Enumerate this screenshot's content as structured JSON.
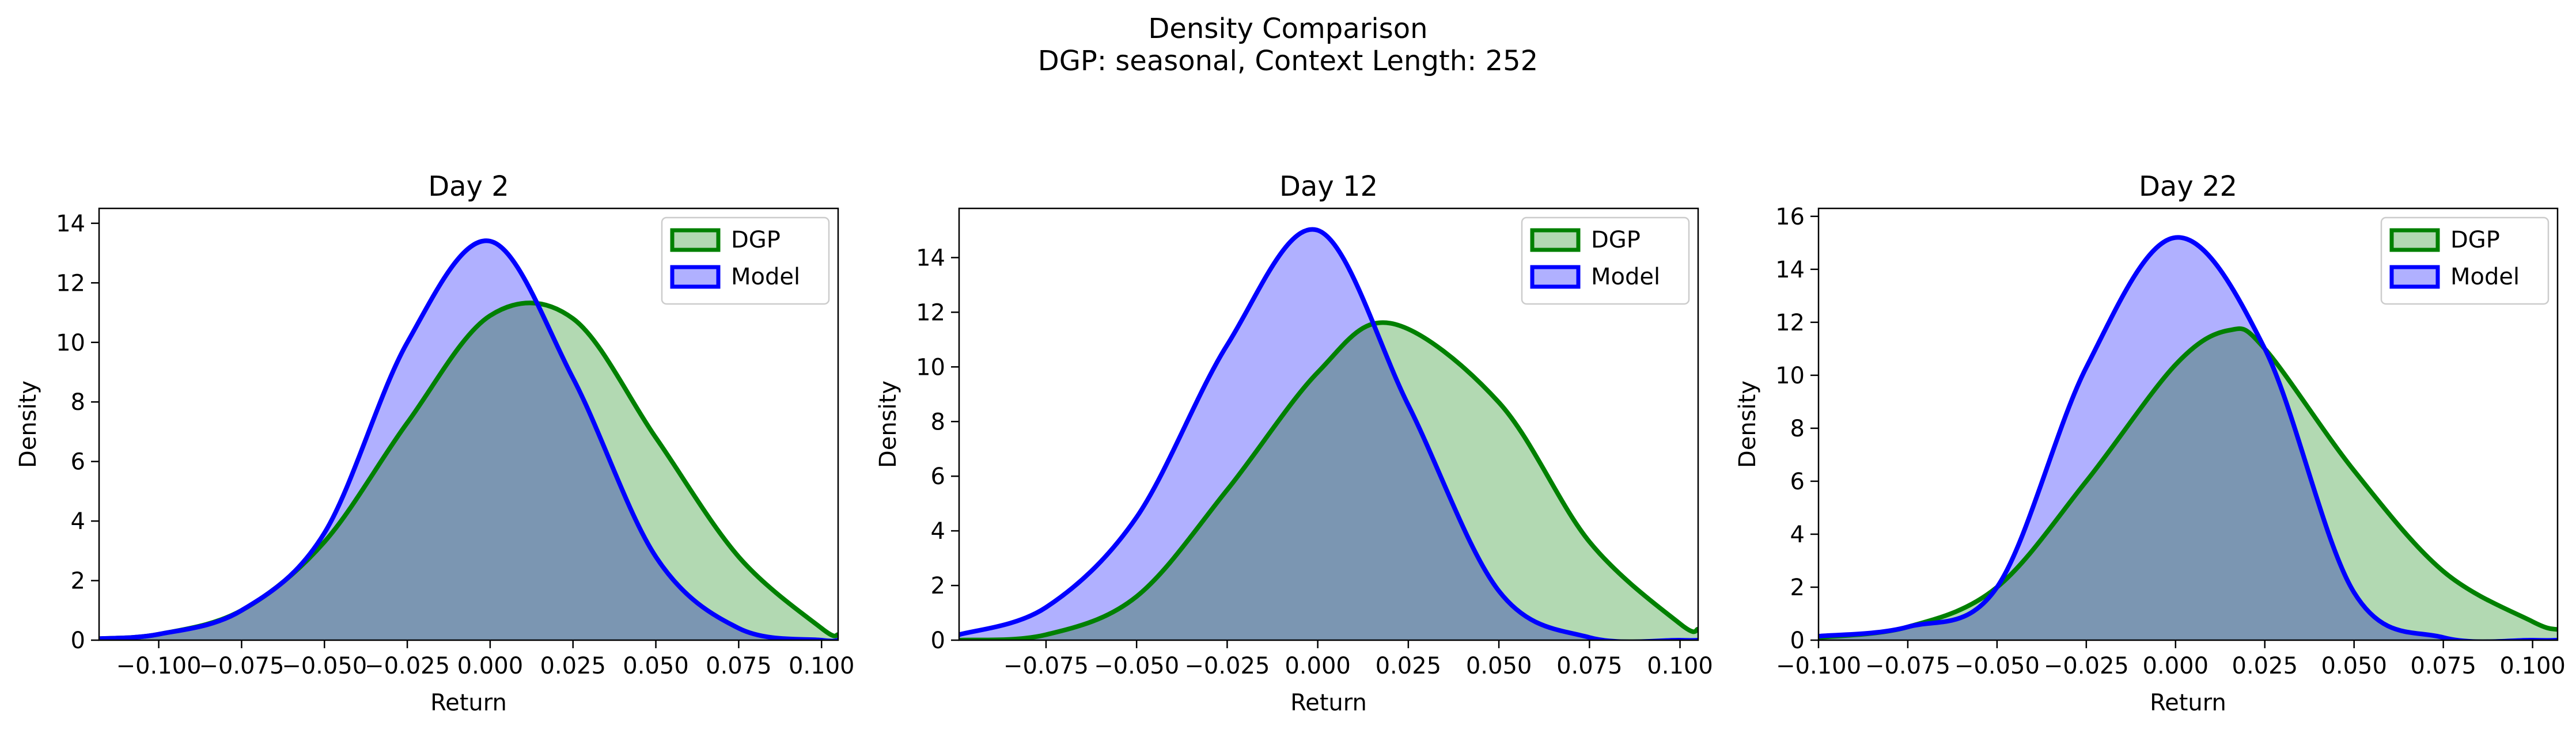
{
  "figure": {
    "title_line1": "Density Comparison",
    "title_line2": "DGP: seasonal, Context Length: 252"
  },
  "colors": {
    "dgp_fill": "#b2d9b2",
    "dgp_line": "#008000",
    "model_fill": "#b0b0ff",
    "model_line": "#0000ff",
    "overlap_fill": "#7c97c8"
  },
  "chart_data": [
    {
      "type": "area",
      "title": "Day 2",
      "xlabel": "Return",
      "ylabel": "Density",
      "xlim": [
        -0.118,
        0.105
      ],
      "ylim": [
        0,
        14.5
      ],
      "xticks": [
        -0.1,
        -0.075,
        -0.05,
        -0.025,
        0.0,
        0.025,
        0.05,
        0.075,
        0.1
      ],
      "xtick_labels": [
        "−0.100",
        "−0.075",
        "−0.050",
        "−0.025",
        "0.000",
        "0.025",
        "0.050",
        "0.075",
        "0.100"
      ],
      "yticks": [
        0,
        2,
        4,
        6,
        8,
        10,
        12,
        14
      ],
      "ytick_labels": [
        "0",
        "2",
        "4",
        "6",
        "8",
        "10",
        "12",
        "14"
      ],
      "legend": {
        "placement": "top-right",
        "entries": [
          "DGP",
          "Model"
        ]
      },
      "grid": false,
      "series": [
        {
          "name": "DGP",
          "x": [
            -0.118,
            -0.1,
            -0.075,
            -0.05,
            -0.025,
            0.0,
            0.025,
            0.05,
            0.075,
            0.1,
            0.105
          ],
          "y": [
            0.05,
            0.2,
            1.0,
            3.3,
            7.3,
            10.9,
            10.8,
            6.8,
            2.8,
            0.4,
            0.18
          ]
        },
        {
          "name": "Model",
          "x": [
            -0.118,
            -0.1,
            -0.075,
            -0.05,
            -0.025,
            0.0,
            0.025,
            0.05,
            0.075,
            0.1,
            0.105
          ],
          "y": [
            0.05,
            0.2,
            1.0,
            3.6,
            10.0,
            13.4,
            8.8,
            2.8,
            0.4,
            0.0,
            0.0
          ]
        }
      ]
    },
    {
      "type": "area",
      "title": "Day 12",
      "xlabel": "Return",
      "ylabel": "Density",
      "xlim": [
        -0.099,
        0.105
      ],
      "ylim": [
        0,
        15.8
      ],
      "xticks": [
        -0.075,
        -0.05,
        -0.025,
        0.0,
        0.025,
        0.05,
        0.075,
        0.1
      ],
      "xtick_labels": [
        "−0.075",
        "−0.050",
        "−0.025",
        "0.000",
        "0.025",
        "0.050",
        "0.075",
        "0.100"
      ],
      "yticks": [
        0,
        2,
        4,
        6,
        8,
        10,
        12,
        14
      ],
      "ytick_labels": [
        "0",
        "2",
        "4",
        "6",
        "8",
        "10",
        "12",
        "14"
      ],
      "legend": {
        "placement": "top-right",
        "entries": [
          "DGP",
          "Model"
        ]
      },
      "grid": false,
      "series": [
        {
          "name": "DGP",
          "x": [
            -0.099,
            -0.075,
            -0.05,
            -0.025,
            0.0,
            0.02,
            0.05,
            0.075,
            0.1,
            0.105
          ],
          "y": [
            0.0,
            0.2,
            1.6,
            5.5,
            9.8,
            11.6,
            8.7,
            3.6,
            0.6,
            0.4
          ]
        },
        {
          "name": "Model",
          "x": [
            -0.099,
            -0.075,
            -0.05,
            -0.025,
            0.0,
            0.025,
            0.05,
            0.075,
            0.1,
            0.105
          ],
          "y": [
            0.2,
            1.2,
            4.5,
            10.8,
            15.0,
            8.6,
            1.8,
            0.1,
            0.0,
            0.0
          ]
        }
      ]
    },
    {
      "type": "area",
      "title": "Day 22",
      "xlabel": "Return",
      "ylabel": "Density",
      "xlim": [
        -0.1,
        0.107
      ],
      "ylim": [
        0,
        16.3
      ],
      "xticks": [
        -0.1,
        -0.075,
        -0.05,
        -0.025,
        0.0,
        0.025,
        0.05,
        0.075,
        0.1
      ],
      "xtick_labels": [
        "−0.100",
        "−0.075",
        "−0.050",
        "−0.025",
        "0.000",
        "0.025",
        "0.050",
        "0.075",
        "0.100"
      ],
      "yticks": [
        0,
        2,
        4,
        6,
        8,
        10,
        12,
        14,
        16
      ],
      "ytick_labels": [
        "0",
        "2",
        "4",
        "6",
        "8",
        "10",
        "12",
        "14",
        "16"
      ],
      "legend": {
        "placement": "top-right",
        "entries": [
          "DGP",
          "Model"
        ]
      },
      "grid": false,
      "series": [
        {
          "name": "DGP",
          "x": [
            -0.1,
            -0.075,
            -0.05,
            -0.025,
            0.0,
            0.015,
            0.025,
            0.05,
            0.075,
            0.1,
            0.107
          ],
          "y": [
            0.1,
            0.5,
            2.0,
            6.0,
            10.4,
            11.7,
            11.0,
            6.4,
            2.6,
            0.7,
            0.4
          ]
        },
        {
          "name": "Model",
          "x": [
            -0.1,
            -0.075,
            -0.05,
            -0.025,
            0.0,
            0.025,
            0.05,
            0.075,
            0.1,
            0.107
          ],
          "y": [
            0.15,
            0.5,
            2.0,
            10.3,
            15.2,
            11.0,
            1.8,
            0.1,
            0.0,
            0.0
          ]
        }
      ]
    }
  ]
}
